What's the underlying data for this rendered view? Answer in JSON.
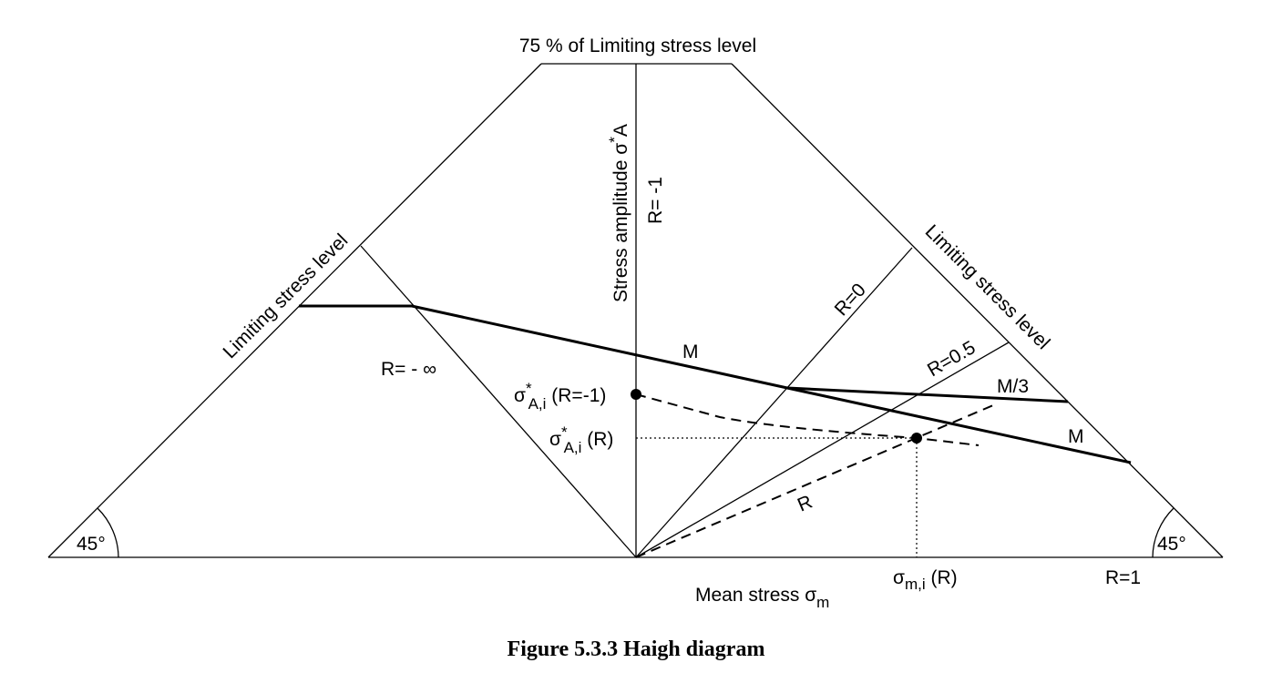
{
  "labels": {
    "top_level": "75 % of Limiting stress level",
    "left_limit": "Limiting stress level",
    "right_limit": "Limiting stress level",
    "y_axis": "Stress amplitude σ",
    "y_axis_sup": "*",
    "y_axis_tail": "A",
    "r_minus_one": "R= -1",
    "r_minus_inf": "R= - ∞",
    "r_zero": "R=0",
    "r_half": "R=0.5",
    "r_one": "R=1",
    "r_dashed": "R",
    "m_upper": "M",
    "m_third": "M/3",
    "m_lower": "M",
    "angle_left": "45°",
    "angle_right": "45°",
    "sigma_a_r_minus1": {
      "base": "σ",
      "sup": "*",
      "sub": "A,i",
      "tail": " (R=-1)"
    },
    "sigma_a_r": {
      "base": "σ",
      "sup": "*",
      "sub": "A,i",
      "tail": " (R)"
    },
    "sigma_m_r": {
      "base": "σ",
      "sub": "m,i",
      "tail": " (R)"
    },
    "x_axis": {
      "base": "Mean stress σ",
      "sub": "m"
    }
  },
  "caption": "Figure 5.3.3 Haigh diagram"
}
